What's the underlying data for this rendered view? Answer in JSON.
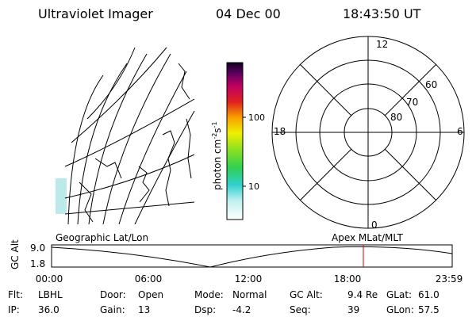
{
  "header": {
    "title": "Ultraviolet Imager",
    "date": "04 Dec 00",
    "time": "18:43:50 UT"
  },
  "colorbar": {
    "unit": [
      "photon cm",
      "-2",
      "s",
      "-1"
    ],
    "ticks": [
      "100",
      "10"
    ]
  },
  "polar": {
    "mlt_labels": [
      "12",
      "18",
      "6",
      "0"
    ],
    "lat_labels": [
      "60",
      "70",
      "80"
    ]
  },
  "strip": {
    "left_label": "Geographic Lat/Lon",
    "right_label": "Apex MLat/MLT",
    "y_label": "GC Alt",
    "yticks": [
      "9.0",
      "1.8"
    ],
    "xticks": [
      "00:00",
      "06:00",
      "12:00",
      "18:00",
      "23:59"
    ]
  },
  "footer": {
    "rows": [
      [
        {
          "label": "Flt:",
          "value": "LBHL"
        },
        {
          "label": "Door:",
          "value": "Open"
        },
        {
          "label": "Mode:",
          "value": "Normal"
        },
        {
          "label": "GC Alt:",
          "value": "9.4 Re"
        },
        {
          "label": "GLat:",
          "value": "61.0"
        }
      ],
      [
        {
          "label": "IP:",
          "value": "36.0"
        },
        {
          "label": "Gain:",
          "value": "13"
        },
        {
          "label": "Dsp:",
          "value": "-4.2"
        },
        {
          "label": "Seq:",
          "value": "39"
        },
        {
          "label": "GLon:",
          "value": "57.5"
        }
      ]
    ]
  }
}
